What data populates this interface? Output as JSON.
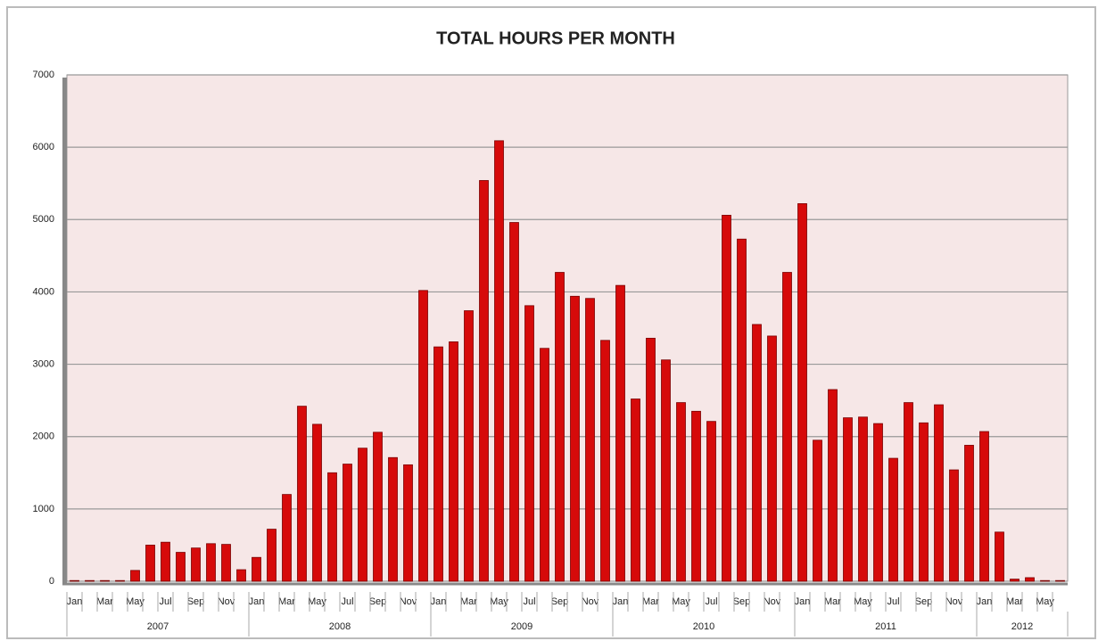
{
  "chart_data": {
    "type": "bar",
    "title": "TOTAL HOURS PER MONTH",
    "categories": [
      "Jan",
      null,
      "Mar",
      null,
      "May",
      null,
      "Jul",
      null,
      "Sep",
      null,
      "Nov",
      null,
      "Jan",
      null,
      "Mar",
      null,
      "May",
      null,
      "Jul",
      null,
      "Sep",
      null,
      "Nov",
      null,
      "Jan",
      null,
      "Mar",
      null,
      "May",
      null,
      "Jul",
      null,
      "Sep",
      null,
      "Nov",
      null,
      "Jan",
      null,
      "Mar",
      null,
      "May",
      null,
      "Jul",
      null,
      "Sep",
      null,
      "Nov",
      null,
      "Jan",
      null,
      "Mar",
      null,
      "May",
      null,
      "Jul",
      null,
      "Sep",
      null,
      "Nov",
      null,
      "Jan",
      null,
      "Mar",
      null,
      "May",
      null
    ],
    "groups": [
      {
        "name": "2007",
        "span": 12
      },
      {
        "name": "2008",
        "span": 12
      },
      {
        "name": "2009",
        "span": 12
      },
      {
        "name": "2010",
        "span": 12
      },
      {
        "name": "2011",
        "span": 12
      },
      {
        "name": "2012",
        "span": 6
      }
    ],
    "values": [
      10,
      10,
      10,
      10,
      150,
      500,
      540,
      400,
      460,
      520,
      510,
      160,
      330,
      720,
      1200,
      2420,
      2170,
      1500,
      1620,
      1840,
      2060,
      1710,
      1610,
      4020,
      3240,
      3310,
      3740,
      5540,
      6090,
      4960,
      3810,
      3220,
      4270,
      3940,
      3910,
      3330,
      4090,
      2520,
      3360,
      3060,
      2470,
      2350,
      2210,
      5060,
      4730,
      3550,
      3390,
      4270,
      5220,
      1950,
      2650,
      2260,
      2270,
      2180,
      1700,
      2470,
      2190,
      2440,
      1540,
      1880,
      2070,
      680,
      30,
      50,
      10,
      10
    ],
    "color": "#d60a0a",
    "ylim": [
      0,
      7000
    ],
    "yticks": [
      0,
      1000,
      2000,
      3000,
      4000,
      5000,
      6000,
      7000
    ],
    "grid": true
  }
}
